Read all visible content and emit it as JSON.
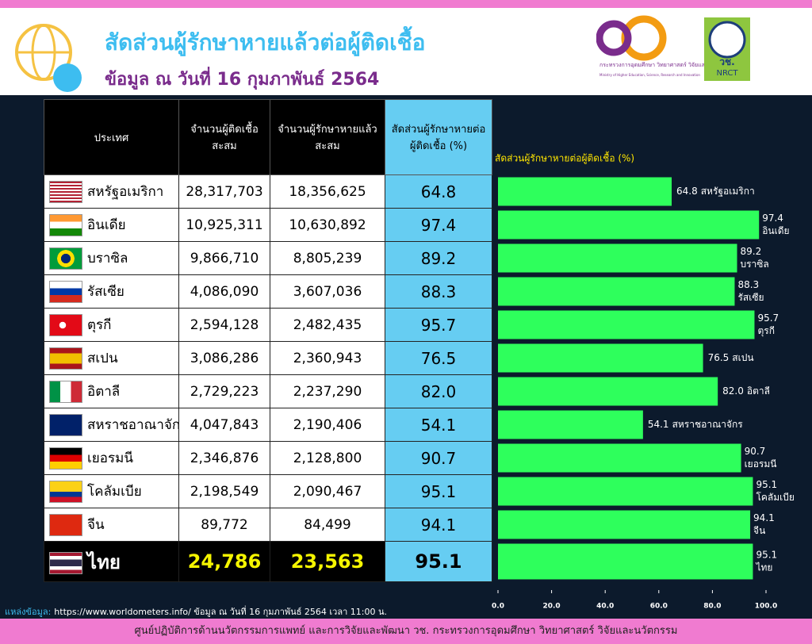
{
  "header": {
    "title": "สัดส่วนผู้รักษาหายแล้วต่อผู้ติดเชื้อ",
    "subtitle": "ข้อมูล ณ วันที่ 16 กุมภาพันธ์ 2564"
  },
  "logos": {
    "ministry_name": "กระทรวงการอุดมศึกษา วิทยาศาสตร์ วิจัยและนวัตกรรม",
    "ministry_name_en": "Ministry of Higher Education, Science, Research and Innovation",
    "nrct_th": "วช.",
    "nrct_en": "NRCT"
  },
  "table": {
    "headers": [
      "ประเทศ",
      "จำนวนผู้ติดเชื้อสะสม",
      "จำนวนผู้รักษาหายแล้วสะสม",
      "สัดส่วนผู้รักษาหายต่อผู้ติดเชื้อ (%)"
    ],
    "rows": [
      [
        "สหรัฐอเมริกา",
        "28,317,703",
        "18,356,625",
        "64.8"
      ],
      [
        "อินเดีย",
        "10,925,311",
        "10,630,892",
        "97.4"
      ],
      [
        "บราซิล",
        "9,866,710",
        "8,805,239",
        "89.2"
      ],
      [
        "รัสเซีย",
        "4,086,090",
        "3,607,036",
        "88.3"
      ],
      [
        "ตุรกี",
        "2,594,128",
        "2,482,435",
        "95.7"
      ],
      [
        "สเปน",
        "3,086,286",
        "2,360,943",
        "76.5"
      ],
      [
        "อิตาลี",
        "2,729,223",
        "2,237,290",
        "82.0"
      ],
      [
        "สหราชอาณาจักร",
        "4,047,843",
        "2,190,406",
        "54.1"
      ],
      [
        "เยอรมนี",
        "2,346,876",
        "2,128,800",
        "90.7"
      ],
      [
        "โคลัมเบีย",
        "2,198,549",
        "2,090,467",
        "95.1"
      ],
      [
        "จีน",
        "89,772",
        "84,499",
        "94.1"
      ],
      [
        "ไทย",
        "24,786",
        "23,563",
        "95.1"
      ]
    ]
  },
  "chart_data": {
    "type": "hbar",
    "title": "สัดส่วนผู้รักษาหายต่อผู้ติดเชื้อ (%)",
    "categories": [
      "สหรัฐอเมริกา",
      "อินเดีย",
      "บราซิล",
      "รัสเซีย",
      "ตุรกี",
      "สเปน",
      "อิตาลี",
      "สหราชอาณาจักร",
      "เยอรมนี",
      "โคลัมเบีย",
      "จีน",
      "ไทย"
    ],
    "values": [
      64.8,
      97.4,
      89.2,
      88.3,
      95.7,
      76.5,
      82,
      54.1,
      90.7,
      95.1,
      94.1,
      95.1
    ],
    "value_labels": [
      "64.8",
      "97.4",
      "89.2",
      "88.3",
      "95.7",
      "76.5",
      "82.0",
      "54.1",
      "90.7",
      "95.1",
      "94.1",
      "95.1"
    ],
    "color": "#2eff5c",
    "xlim": [
      0,
      100
    ],
    "xticks": [
      {
        "value": 0,
        "label": "0.0"
      },
      {
        "value": 20,
        "label": "20.0"
      },
      {
        "value": 40,
        "label": "40.0"
      },
      {
        "value": 60,
        "label": "60.0"
      },
      {
        "value": 80,
        "label": "80.0"
      },
      {
        "value": 100,
        "label": "100.0"
      }
    ]
  },
  "source": {
    "label": "แหล่งข้อมูล:",
    "text": "https://www.worldometers.info/ ข้อมูล ณ วันที่ 16 กุมภาพันธ์ 2564 เวลา 11:00 น."
  },
  "footer": "ศูนย์ปฏิบัติการด้านนวัตกรรมการแพทย์ และการวิจัยและพัฒนา วช. กระทรวงการอุดมศึกษา วิทยาศาสตร์ วิจัยและนวัตกรรม"
}
